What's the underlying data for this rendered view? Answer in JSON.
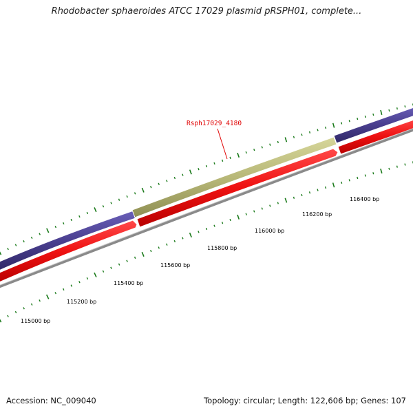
{
  "title": "Rhodobacter sphaeroides ATCC 17029 plasmid pRSPH01, complete...",
  "footer": {
    "accession_label": "Accession:",
    "accession": "NC_009040",
    "topology_label": "Topology:",
    "topology": "circular",
    "length_label": "Length:",
    "length": "122,606 bp",
    "genes_label": "Genes:",
    "genes": "107"
  },
  "highlighted_gene": {
    "name": "Rsph17029_4180"
  },
  "ruler": {
    "ticks": [
      {
        "position": 115000,
        "label": "115000 bp"
      },
      {
        "position": 115200,
        "label": "115200 bp"
      },
      {
        "position": 115400,
        "label": "115400 bp"
      },
      {
        "position": 115600,
        "label": "115600 bp"
      },
      {
        "position": 115800,
        "label": "115800 bp"
      },
      {
        "position": 116000,
        "label": "116000 bp"
      },
      {
        "position": 116200,
        "label": "116200 bp"
      },
      {
        "position": 116400,
        "label": "116400 bp"
      }
    ]
  },
  "colors": {
    "highlighted_gene": "#b8b878",
    "gene_track_outer": "#4a3f8f",
    "gene_track_inner": "#ee1111",
    "backbone": "#8a8a8a",
    "tick_marks": "#1a7a1a",
    "label": "#e00000"
  },
  "icons": {
    "feature_callout_line": "red-leader-line"
  }
}
